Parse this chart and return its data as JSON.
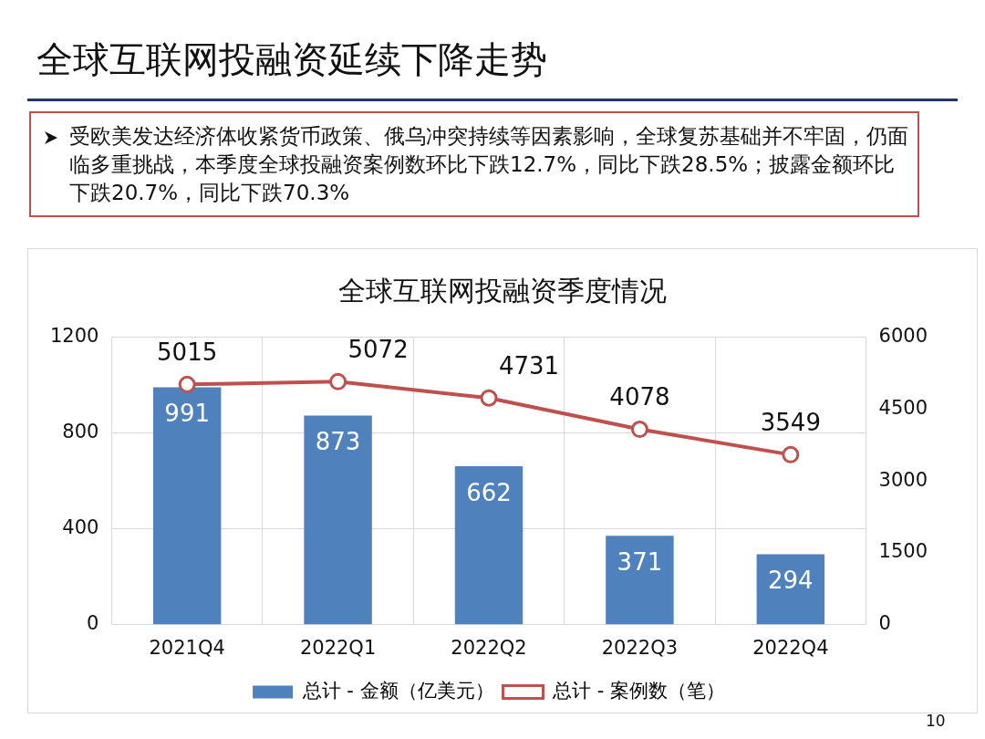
{
  "chart_data": {
    "type": "bar",
    "title": "全球互联网投融资延续下降走势",
    "subtitle": "全球互联网投融资季度情况",
    "annotations": [
      "受欧美发达经济体收紧货币政策、俄乌冲突持续等因素影响，全球复苏基础并不牢固，仍面临多重挑战，本季度全球投融资案例数环比下跌12.7%，同比下跌28.5%；披露金额环比下跌20.7%，同比下跌70.3%",
      "10"
    ],
    "categories": [
      "2021Q4",
      "2022Q1",
      "2022Q2",
      "2022Q3",
      "2022Q4"
    ],
    "series": [
      {
        "name": "总计 - 金额（亿美元）",
        "color": "#4f81bd",
        "values": [
          991,
          873,
          662,
          371,
          294
        ]
      },
      {
        "name": "总计 - 案例数（笔）",
        "type": "line",
        "axis": "y2",
        "color": "#c0504d",
        "values": [
          5015,
          5072,
          4731,
          4078,
          3549
        ]
      }
    ],
    "ylim": [
      0,
      1200
    ],
    "yticks": [
      0,
      400,
      800,
      1200
    ],
    "y2lim": [
      0,
      6000
    ],
    "y2ticks": [
      0,
      1500,
      3000,
      4500,
      6000
    ],
    "grid": true,
    "legend": "bottom",
    "marker": "circle",
    "data_labels": true
  }
}
